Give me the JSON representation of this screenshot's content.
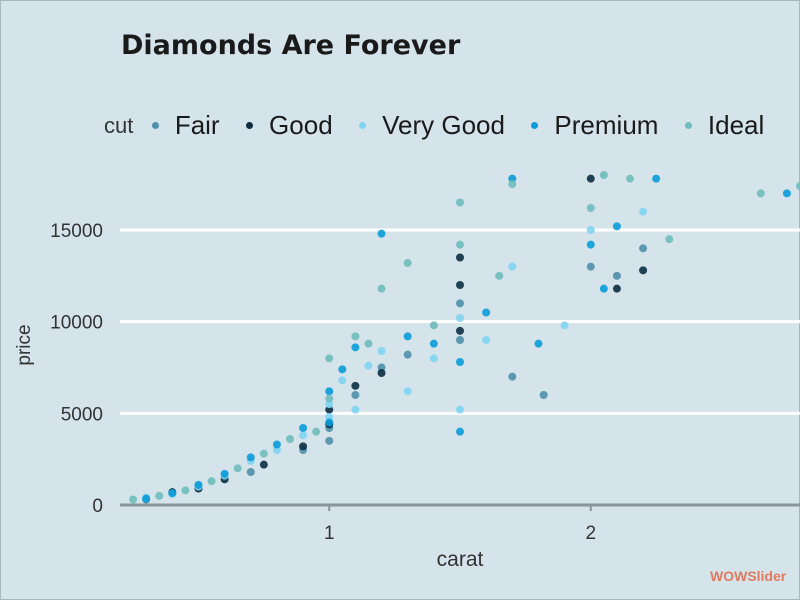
{
  "colors": {
    "background": "#d5e4eb",
    "grid": "#ffffff",
    "axis": "#8a959b",
    "text": "#1a1a1a"
  },
  "watermark": "WOWSlider",
  "chart_data": {
    "type": "scatter",
    "title": "Diamonds Are Forever",
    "xlabel": "carat",
    "ylabel": "price",
    "xlim": [
      0.2,
      2.8
    ],
    "ylim": [
      0,
      18000
    ],
    "xticks": [
      1,
      2
    ],
    "yticks": [
      0,
      5000,
      10000,
      15000
    ],
    "grid": true,
    "legend_position": "top",
    "legend_title": "cut",
    "series": [
      {
        "name": "Fair",
        "color": "#4f8fa8",
        "points": [
          [
            0.3,
            300
          ],
          [
            0.5,
            900
          ],
          [
            0.7,
            1800
          ],
          [
            0.9,
            3000
          ],
          [
            1.0,
            4200
          ],
          [
            1.0,
            3500
          ],
          [
            1.1,
            6000
          ],
          [
            1.2,
            7500
          ],
          [
            1.3,
            8200
          ],
          [
            1.5,
            9000
          ],
          [
            1.5,
            11000
          ],
          [
            1.7,
            7000
          ],
          [
            1.82,
            6000
          ],
          [
            2.0,
            13000
          ],
          [
            2.1,
            12500
          ],
          [
            2.2,
            14000
          ]
        ]
      },
      {
        "name": "Good",
        "color": "#0c2d44",
        "points": [
          [
            0.4,
            700
          ],
          [
            0.5,
            900
          ],
          [
            0.6,
            1400
          ],
          [
            0.75,
            2200
          ],
          [
            0.9,
            3200
          ],
          [
            1.0,
            4400
          ],
          [
            1.0,
            5200
          ],
          [
            1.1,
            6500
          ],
          [
            1.2,
            7200
          ],
          [
            1.5,
            9500
          ],
          [
            1.5,
            12000
          ],
          [
            1.5,
            13500
          ],
          [
            2.0,
            17800
          ],
          [
            2.1,
            11800
          ],
          [
            2.2,
            12800
          ]
        ]
      },
      {
        "name": "Very Good",
        "color": "#7fd4f2",
        "points": [
          [
            0.3,
            400
          ],
          [
            0.4,
            600
          ],
          [
            0.5,
            1000
          ],
          [
            0.6,
            1600
          ],
          [
            0.7,
            2400
          ],
          [
            0.8,
            3000
          ],
          [
            0.9,
            3800
          ],
          [
            1.0,
            4800
          ],
          [
            1.0,
            5500
          ],
          [
            1.05,
            6800
          ],
          [
            1.1,
            5200
          ],
          [
            1.15,
            7600
          ],
          [
            1.2,
            8400
          ],
          [
            1.3,
            6200
          ],
          [
            1.4,
            8000
          ],
          [
            1.5,
            10200
          ],
          [
            1.5,
            5200
          ],
          [
            1.6,
            9000
          ],
          [
            1.7,
            13000
          ],
          [
            1.9,
            9800
          ],
          [
            2.0,
            15000
          ],
          [
            2.2,
            16000
          ]
        ]
      },
      {
        "name": "Premium",
        "color": "#0a9bd8",
        "points": [
          [
            0.3,
            350
          ],
          [
            0.4,
            650
          ],
          [
            0.5,
            1100
          ],
          [
            0.6,
            1700
          ],
          [
            0.7,
            2600
          ],
          [
            0.8,
            3300
          ],
          [
            0.9,
            4200
          ],
          [
            1.0,
            4500
          ],
          [
            1.0,
            6200
          ],
          [
            1.05,
            7400
          ],
          [
            1.1,
            8600
          ],
          [
            1.2,
            14800
          ],
          [
            1.3,
            9200
          ],
          [
            1.4,
            8800
          ],
          [
            1.5,
            4000
          ],
          [
            1.5,
            7800
          ],
          [
            1.6,
            10500
          ],
          [
            1.7,
            17800
          ],
          [
            1.8,
            8800
          ],
          [
            2.0,
            14200
          ],
          [
            2.05,
            11800
          ],
          [
            2.1,
            15200
          ],
          [
            2.25,
            17800
          ],
          [
            2.75,
            17000
          ]
        ]
      },
      {
        "name": "Ideal",
        "color": "#6fbcbc",
        "points": [
          [
            0.25,
            300
          ],
          [
            0.35,
            500
          ],
          [
            0.45,
            800
          ],
          [
            0.55,
            1300
          ],
          [
            0.65,
            2000
          ],
          [
            0.75,
            2800
          ],
          [
            0.85,
            3600
          ],
          [
            0.95,
            4000
          ],
          [
            1.0,
            5800
          ],
          [
            1.0,
            8000
          ],
          [
            1.1,
            9200
          ],
          [
            1.15,
            8800
          ],
          [
            1.2,
            11800
          ],
          [
            1.3,
            13200
          ],
          [
            1.4,
            9800
          ],
          [
            1.5,
            14200
          ],
          [
            1.5,
            16500
          ],
          [
            1.65,
            12500
          ],
          [
            1.7,
            17500
          ],
          [
            2.0,
            16200
          ],
          [
            2.05,
            18000
          ],
          [
            2.15,
            17800
          ],
          [
            2.3,
            14500
          ],
          [
            2.65,
            17000
          ],
          [
            2.8,
            17400
          ]
        ]
      }
    ]
  }
}
